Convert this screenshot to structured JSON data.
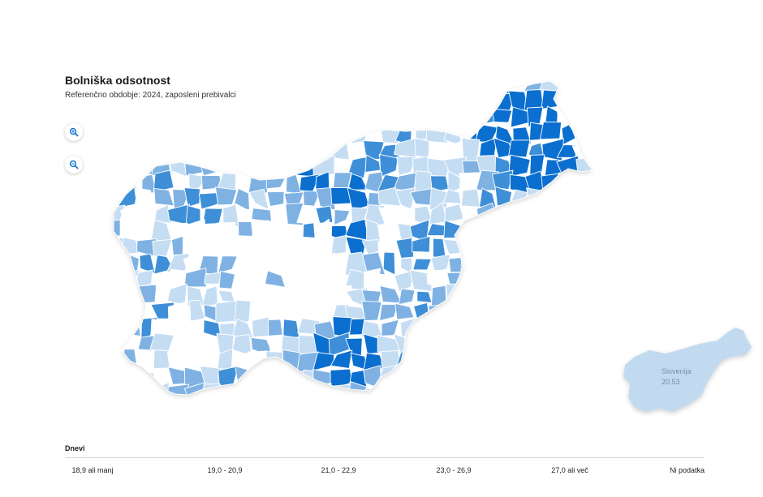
{
  "header": {
    "title": "Bolniška odsotnost",
    "subtitle": "Referenčno obdobje: 2024, zaposleni prebivalci"
  },
  "controls": {
    "zoom_in_icon": "zoom-in-icon",
    "zoom_out_icon": "zoom-out-icon"
  },
  "national": {
    "name": "Slovenija",
    "value": "20,53",
    "color": "#c2daf0"
  },
  "legend": {
    "title": "Dnevi",
    "classes": [
      {
        "label": "18,9 ali manj",
        "color": "#ffffff"
      },
      {
        "label": "19,0 - 20,9",
        "color": "#c5ddf3"
      },
      {
        "label": "21,0 - 22,9",
        "color": "#7fb2e3"
      },
      {
        "label": "23,0 - 26,9",
        "color": "#3e8fd7"
      },
      {
        "label": "27,0 ali več",
        "color": "#0b6fd0"
      },
      {
        "label": "Ni podatka",
        "color": "#e6e6e6"
      }
    ]
  }
}
